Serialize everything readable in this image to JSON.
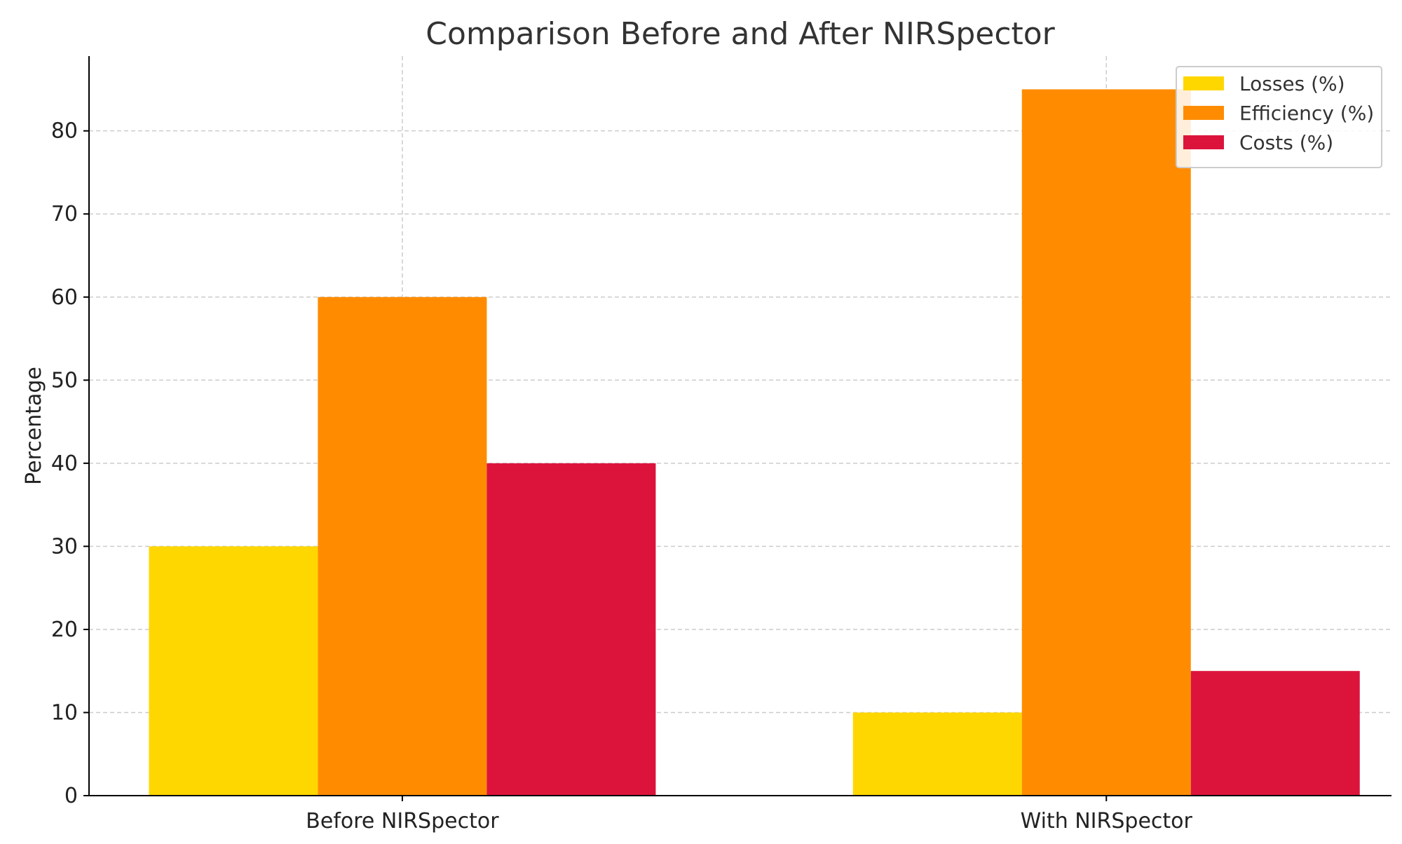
{
  "chart_data": {
    "type": "bar",
    "title": "Comparison Before and After NIRSpector",
    "xlabel": "",
    "ylabel": "Percentage",
    "categories": [
      "Before NIRSpector",
      "With NIRSpector"
    ],
    "series": [
      {
        "name": "Losses (%)",
        "values": [
          30,
          10
        ],
        "color": "#FFD700"
      },
      {
        "name": "Efficiency (%)",
        "values": [
          60,
          85
        ],
        "color": "#FF8C00"
      },
      {
        "name": "Costs (%)",
        "values": [
          40,
          15
        ],
        "color": "#DC143C"
      }
    ],
    "ylim": [
      0,
      89
    ],
    "yticks": [
      0,
      10,
      20,
      30,
      40,
      50,
      60,
      70,
      80
    ],
    "grid": true,
    "legend_position": "top-right"
  }
}
